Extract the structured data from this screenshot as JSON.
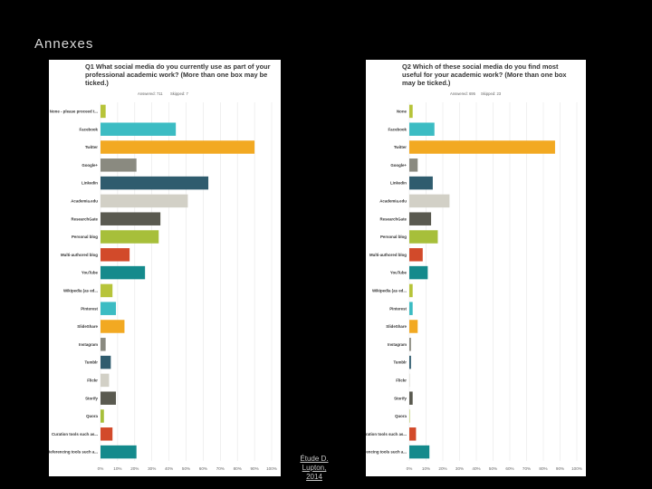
{
  "slide": {
    "title": "Annexes",
    "caption_line1": "Étude D. Lupton,",
    "caption_line2": "2014"
  },
  "chart_data": [
    {
      "type": "bar",
      "orientation": "horizontal",
      "title": "Q1 What social media do you currently use as part of your professional academic work? (More than one box may be ticked.)",
      "answered": "Answered: 711",
      "skipped": "Skipped: 7",
      "color_scheme": [
        "#b7c43a",
        "#3cbcc3",
        "#f2a922",
        "#8a8a80",
        "#2f5c6e",
        "#d2d0c6",
        "#5a5a50",
        "#a7bf3a",
        "#d24a2a",
        "#148a8c"
      ],
      "categories": [
        "None - please proceed t...",
        "Facebook",
        "Twitter",
        "Google+",
        "LinkedIn",
        "Academia.edu",
        "ResearchGate",
        "Personal blog",
        "Multi-authored blog",
        "YouTube",
        "Wikipedia (as ed...",
        "Pinterest",
        "SlideShare",
        "Instagram",
        "Tumblr",
        "Flickr",
        "Storify",
        "Quora",
        "Curation tools such as...",
        "Referencing tools such a..."
      ],
      "values": [
        3,
        44,
        90,
        21,
        63,
        51,
        35,
        34,
        17,
        26,
        7,
        9,
        14,
        3,
        6,
        5,
        9,
        2,
        7,
        21
      ],
      "xlim": [
        0,
        100
      ],
      "ticks": [
        "0%",
        "10%",
        "20%",
        "30%",
        "40%",
        "50%",
        "60%",
        "70%",
        "80%",
        "90%",
        "100%"
      ]
    },
    {
      "type": "bar",
      "orientation": "horizontal",
      "title": "Q2 Which of these social media do you find most useful for your academic work? (More than one box may be ticked.)",
      "answered": "Answered: 695",
      "skipped": "Skipped: 23",
      "color_scheme": [
        "#b7c43a",
        "#3cbcc3",
        "#f2a922",
        "#8a8a80",
        "#2f5c6e",
        "#d2d0c6",
        "#5a5a50",
        "#a7bf3a",
        "#d24a2a",
        "#148a8c"
      ],
      "categories": [
        "None",
        "Facebook",
        "Twitter",
        "Google+",
        "LinkedIn",
        "Academia.edu",
        "ResearchGate",
        "Personal blog",
        "Multi-authored blog",
        "YouTube",
        "Wikipedia (as ed...",
        "Pinterest",
        "SlideShare",
        "Instagram",
        "Tumblr",
        "Flickr",
        "Storify",
        "Quora",
        "Curation tools such as...",
        "Referencing tools such a..."
      ],
      "values": [
        2,
        15,
        87,
        5,
        14,
        24,
        13,
        17,
        8,
        11,
        2,
        2,
        5,
        1,
        1,
        0,
        2,
        0,
        4,
        12
      ],
      "xlim": [
        0,
        100
      ],
      "ticks": [
        "0%",
        "10%",
        "20%",
        "30%",
        "40%",
        "50%",
        "60%",
        "70%",
        "80%",
        "90%",
        "100%"
      ]
    }
  ]
}
